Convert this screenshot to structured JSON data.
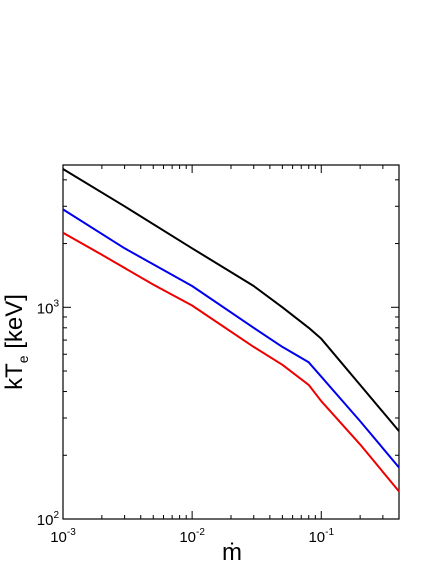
{
  "chart_data": {
    "type": "line",
    "xlabel": "ṁ",
    "ylabel_main": "kT",
    "ylabel_sub": "e",
    "ylabel_unit": "[keV]",
    "xscale": "log",
    "yscale": "log",
    "xlim": [
      0.001,
      0.4
    ],
    "ylim": [
      100,
      4700
    ],
    "xticks": [
      {
        "value": 0.001,
        "base": "10",
        "exp": "-3"
      },
      {
        "value": 0.01,
        "base": "10",
        "exp": "-2"
      },
      {
        "value": 0.1,
        "base": "10",
        "exp": "-1"
      }
    ],
    "yticks": [
      {
        "value": 100,
        "base": "10",
        "exp": "2"
      },
      {
        "value": 1000,
        "base": "10",
        "exp": "3"
      }
    ],
    "grid": false,
    "legend": "none",
    "series": [
      {
        "color": "#000000",
        "x": [
          0.001,
          0.003,
          0.01,
          0.03,
          0.05,
          0.08,
          0.1,
          0.2,
          0.4
        ],
        "y": [
          4500,
          3000,
          1900,
          1260,
          1000,
          800,
          710,
          430,
          260
        ]
      },
      {
        "color": "#0000ee",
        "x": [
          0.001,
          0.003,
          0.01,
          0.03,
          0.05,
          0.08,
          0.1,
          0.2,
          0.4
        ],
        "y": [
          2900,
          1900,
          1260,
          800,
          650,
          550,
          470,
          290,
          175
        ]
      },
      {
        "color": "#ee0000",
        "x": [
          0.001,
          0.002,
          0.005,
          0.01,
          0.03,
          0.05,
          0.08,
          0.1,
          0.2,
          0.4
        ],
        "y": [
          2250,
          1770,
          1280,
          1020,
          650,
          535,
          430,
          360,
          225,
          135
        ]
      }
    ]
  }
}
